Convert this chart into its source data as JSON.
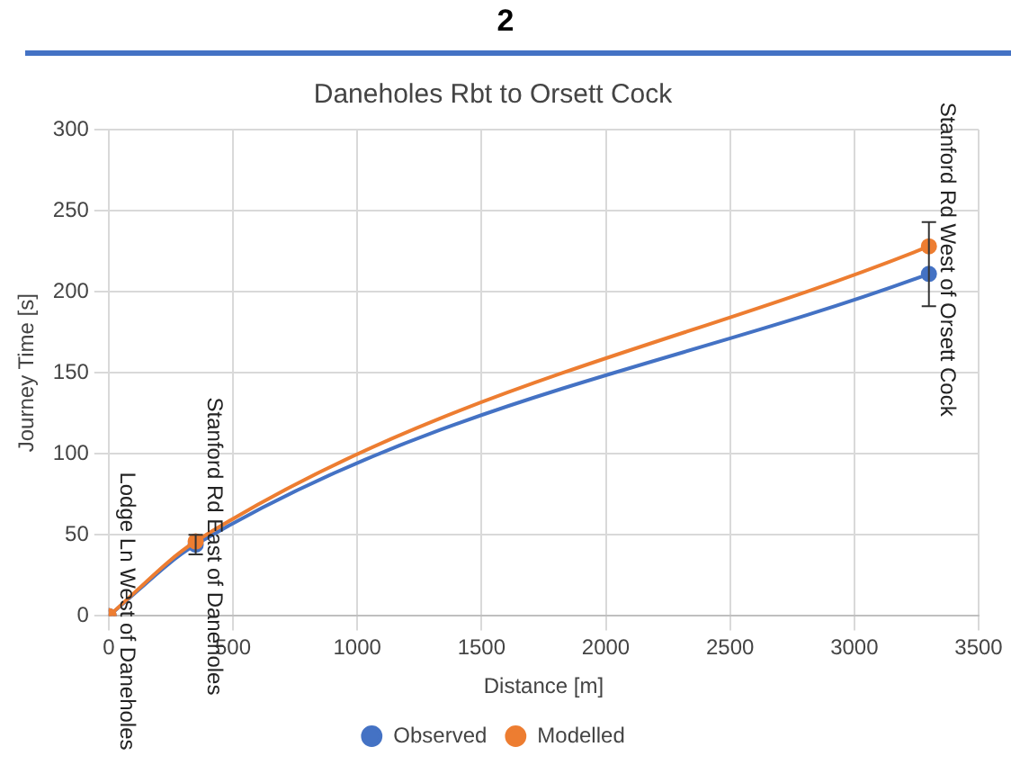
{
  "chart_data": {
    "type": "line",
    "title": "Daneholes Rbt to Orsett Cock",
    "xlabel": "Distance [m]",
    "ylabel": "Journey Time [s]",
    "x": [
      0,
      350,
      3300
    ],
    "series": [
      {
        "name": "Observed",
        "color": "#4472c4",
        "values": [
          0,
          44,
          211
        ],
        "errors": [
          null,
          [
            38,
            50
          ],
          [
            191,
            243
          ]
        ]
      },
      {
        "name": "Modelled",
        "color": "#ed7d31",
        "values": [
          0,
          46,
          228
        ]
      }
    ],
    "xlim": [
      0,
      3500
    ],
    "xticks": [
      0,
      500,
      1000,
      1500,
      2000,
      2500,
      3000,
      3500
    ],
    "ylim": [
      0,
      300
    ],
    "yticks": [
      0,
      50,
      100,
      150,
      200,
      250,
      300
    ],
    "grid": true,
    "legend": "bottom",
    "marker": "circle",
    "line_style": "solid",
    "annotations": [
      "2",
      {
        "text": "Lodge Ln West of Daneholes",
        "x": 0,
        "y": 0
      },
      {
        "text": "Stanford Rd East of Daneholes",
        "x": 350,
        "y": 46
      },
      {
        "text": "Stanford Rd West of Orsett Cock",
        "x": 3300,
        "y": 228
      }
    ]
  }
}
